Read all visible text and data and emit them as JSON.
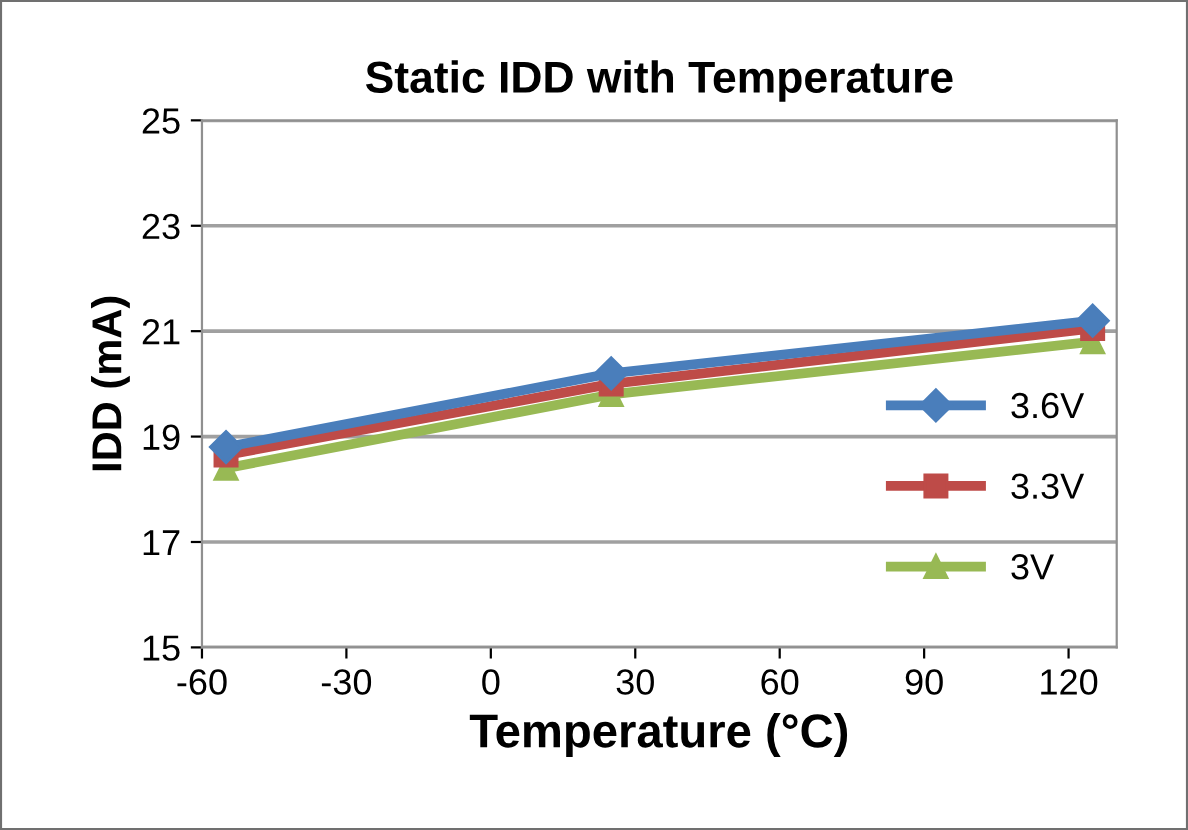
{
  "chart_data": {
    "type": "line",
    "title": "Static IDD with Temperature",
    "xlabel": "Temperature (°C)",
    "ylabel": "IDD (mA)",
    "xlim": [
      -60,
      130
    ],
    "xticks": [
      -60,
      -30,
      0,
      30,
      60,
      90,
      120
    ],
    "ylim": [
      15,
      25
    ],
    "yticks": [
      15,
      17,
      19,
      21,
      23,
      25
    ],
    "grid": "y",
    "legend": "right",
    "series": [
      {
        "name": "3.6V",
        "color": "#4a7ebb",
        "marker": "diamond",
        "x": [
          -55,
          25,
          125
        ],
        "values": [
          18.8,
          20.2,
          21.2
        ]
      },
      {
        "name": "3.3V",
        "color": "#be4b48",
        "marker": "square",
        "x": [
          -55,
          25,
          125
        ],
        "values": [
          18.65,
          20.0,
          21.05
        ]
      },
      {
        "name": "3V",
        "color": "#98b954",
        "marker": "triangle",
        "x": [
          -55,
          25,
          125
        ],
        "values": [
          18.4,
          19.8,
          20.8
        ]
      }
    ]
  }
}
